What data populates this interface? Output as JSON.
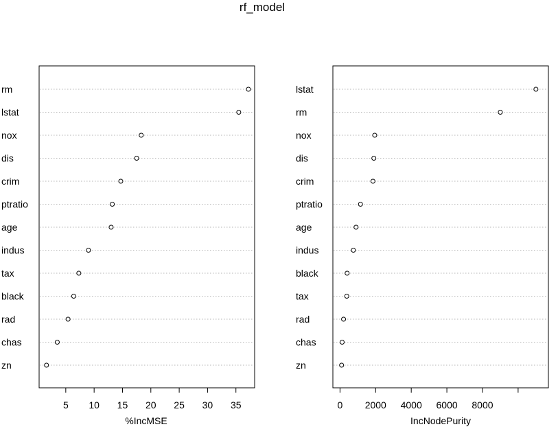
{
  "title": "rf_model",
  "chart_data": [
    {
      "type": "scatter",
      "style": "dotchart",
      "xlabel": "%IncMSE",
      "xlim": [
        0.3,
        38.3
      ],
      "xticks": [
        5,
        10,
        15,
        20,
        25,
        30,
        35
      ],
      "grid": "horizontal dotted",
      "categories": [
        "rm",
        "lstat",
        "nox",
        "dis",
        "crim",
        "ptratio",
        "age",
        "indus",
        "tax",
        "black",
        "rad",
        "chas",
        "zn"
      ],
      "values": [
        37.2,
        35.5,
        18.3,
        17.5,
        14.7,
        13.2,
        13.0,
        9.0,
        7.3,
        6.4,
        5.4,
        3.5,
        1.6
      ]
    },
    {
      "type": "scatter",
      "style": "dotchart",
      "xlabel": "IncNodePurity",
      "xlim": [
        -400,
        11700
      ],
      "xticks": [
        0,
        2000,
        4000,
        6000,
        8000,
        10000
      ],
      "xtick_labels": [
        "0",
        "2000",
        "4000",
        "6000",
        "8000",
        ""
      ],
      "grid": "horizontal dotted",
      "categories": [
        "lstat",
        "rm",
        "nox",
        "dis",
        "crim",
        "ptratio",
        "age",
        "indus",
        "black",
        "tax",
        "rad",
        "chas",
        "zn"
      ],
      "values": [
        11000,
        9000,
        1950,
        1900,
        1850,
        1150,
        900,
        750,
        400,
        380,
        200,
        120,
        90
      ]
    }
  ]
}
